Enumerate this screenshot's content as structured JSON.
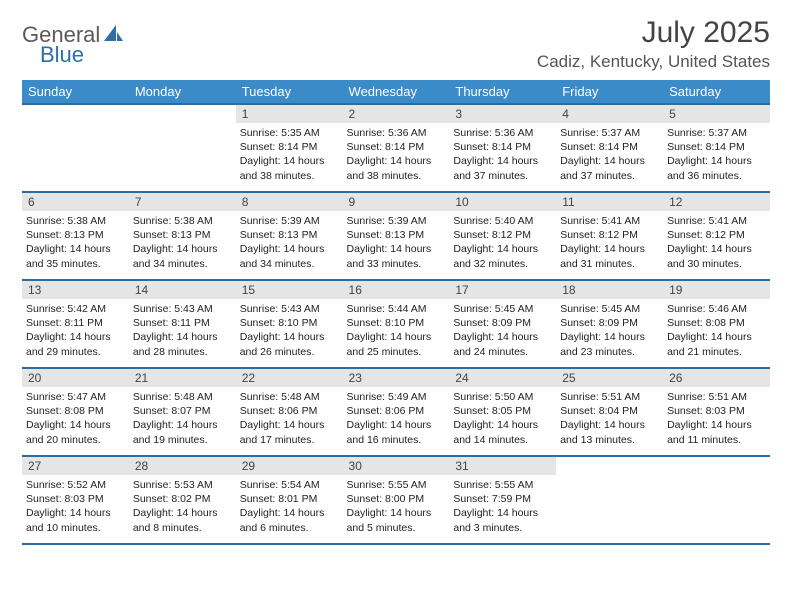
{
  "brand": {
    "general": "General",
    "blue": "Blue"
  },
  "title": "July 2025",
  "location": "Cadiz, Kentucky, United States",
  "colors": {
    "header_bg": "#3b8bc9",
    "header_text": "#ffffff",
    "daynum_bg": "#e5e5e5",
    "border": "#2d6ca3",
    "logo_blue": "#2f6fa8",
    "logo_gray": "#5a5a5a"
  },
  "weekdays": [
    "Sunday",
    "Monday",
    "Tuesday",
    "Wednesday",
    "Thursday",
    "Friday",
    "Saturday"
  ],
  "weeks": [
    [
      null,
      null,
      {
        "n": "1",
        "sr": "5:35 AM",
        "ss": "8:14 PM",
        "dl": "14 hours and 38 minutes."
      },
      {
        "n": "2",
        "sr": "5:36 AM",
        "ss": "8:14 PM",
        "dl": "14 hours and 38 minutes."
      },
      {
        "n": "3",
        "sr": "5:36 AM",
        "ss": "8:14 PM",
        "dl": "14 hours and 37 minutes."
      },
      {
        "n": "4",
        "sr": "5:37 AM",
        "ss": "8:14 PM",
        "dl": "14 hours and 37 minutes."
      },
      {
        "n": "5",
        "sr": "5:37 AM",
        "ss": "8:14 PM",
        "dl": "14 hours and 36 minutes."
      }
    ],
    [
      {
        "n": "6",
        "sr": "5:38 AM",
        "ss": "8:13 PM",
        "dl": "14 hours and 35 minutes."
      },
      {
        "n": "7",
        "sr": "5:38 AM",
        "ss": "8:13 PM",
        "dl": "14 hours and 34 minutes."
      },
      {
        "n": "8",
        "sr": "5:39 AM",
        "ss": "8:13 PM",
        "dl": "14 hours and 34 minutes."
      },
      {
        "n": "9",
        "sr": "5:39 AM",
        "ss": "8:13 PM",
        "dl": "14 hours and 33 minutes."
      },
      {
        "n": "10",
        "sr": "5:40 AM",
        "ss": "8:12 PM",
        "dl": "14 hours and 32 minutes."
      },
      {
        "n": "11",
        "sr": "5:41 AM",
        "ss": "8:12 PM",
        "dl": "14 hours and 31 minutes."
      },
      {
        "n": "12",
        "sr": "5:41 AM",
        "ss": "8:12 PM",
        "dl": "14 hours and 30 minutes."
      }
    ],
    [
      {
        "n": "13",
        "sr": "5:42 AM",
        "ss": "8:11 PM",
        "dl": "14 hours and 29 minutes."
      },
      {
        "n": "14",
        "sr": "5:43 AM",
        "ss": "8:11 PM",
        "dl": "14 hours and 28 minutes."
      },
      {
        "n": "15",
        "sr": "5:43 AM",
        "ss": "8:10 PM",
        "dl": "14 hours and 26 minutes."
      },
      {
        "n": "16",
        "sr": "5:44 AM",
        "ss": "8:10 PM",
        "dl": "14 hours and 25 minutes."
      },
      {
        "n": "17",
        "sr": "5:45 AM",
        "ss": "8:09 PM",
        "dl": "14 hours and 24 minutes."
      },
      {
        "n": "18",
        "sr": "5:45 AM",
        "ss": "8:09 PM",
        "dl": "14 hours and 23 minutes."
      },
      {
        "n": "19",
        "sr": "5:46 AM",
        "ss": "8:08 PM",
        "dl": "14 hours and 21 minutes."
      }
    ],
    [
      {
        "n": "20",
        "sr": "5:47 AM",
        "ss": "8:08 PM",
        "dl": "14 hours and 20 minutes."
      },
      {
        "n": "21",
        "sr": "5:48 AM",
        "ss": "8:07 PM",
        "dl": "14 hours and 19 minutes."
      },
      {
        "n": "22",
        "sr": "5:48 AM",
        "ss": "8:06 PM",
        "dl": "14 hours and 17 minutes."
      },
      {
        "n": "23",
        "sr": "5:49 AM",
        "ss": "8:06 PM",
        "dl": "14 hours and 16 minutes."
      },
      {
        "n": "24",
        "sr": "5:50 AM",
        "ss": "8:05 PM",
        "dl": "14 hours and 14 minutes."
      },
      {
        "n": "25",
        "sr": "5:51 AM",
        "ss": "8:04 PM",
        "dl": "14 hours and 13 minutes."
      },
      {
        "n": "26",
        "sr": "5:51 AM",
        "ss": "8:03 PM",
        "dl": "14 hours and 11 minutes."
      }
    ],
    [
      {
        "n": "27",
        "sr": "5:52 AM",
        "ss": "8:03 PM",
        "dl": "14 hours and 10 minutes."
      },
      {
        "n": "28",
        "sr": "5:53 AM",
        "ss": "8:02 PM",
        "dl": "14 hours and 8 minutes."
      },
      {
        "n": "29",
        "sr": "5:54 AM",
        "ss": "8:01 PM",
        "dl": "14 hours and 6 minutes."
      },
      {
        "n": "30",
        "sr": "5:55 AM",
        "ss": "8:00 PM",
        "dl": "14 hours and 5 minutes."
      },
      {
        "n": "31",
        "sr": "5:55 AM",
        "ss": "7:59 PM",
        "dl": "14 hours and 3 minutes."
      },
      null,
      null
    ]
  ],
  "labels": {
    "sunrise": "Sunrise:",
    "sunset": "Sunset:",
    "daylight": "Daylight:"
  }
}
